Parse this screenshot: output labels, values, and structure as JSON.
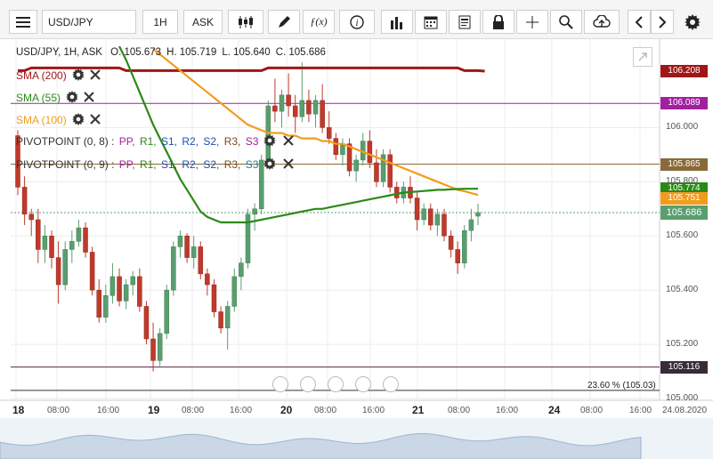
{
  "toolbar": {
    "symbol": "USD/JPY",
    "timeframe": "1H",
    "price_type": "ASK",
    "icons": [
      "menu-icon",
      "candles-icon",
      "pen-icon",
      "function-icon",
      "info-icon",
      "bars-icon",
      "calendar-icon",
      "document-icon",
      "lock-icon",
      "crosshair-icon",
      "zoom-icon",
      "upload-icon",
      "chevron-left-icon",
      "chevron-right-icon",
      "gear-icon"
    ]
  },
  "header": {
    "instrument": "USD/JPY, 1H, ASK",
    "open": "O. 105.673",
    "high": "H. 105.719",
    "low": "L. 105.640",
    "close": "C. 105.686"
  },
  "indicators": [
    {
      "label": "SMA (200)",
      "color": "#a01616"
    },
    {
      "label": "SMA (55)",
      "color": "#2a8a17"
    },
    {
      "label": "SMA (100)",
      "color": "#f29c1c"
    }
  ],
  "pivots": [
    {
      "label": "PIVOTPOINT (0, 8)",
      "sep": ":",
      "items": [
        {
          "t": "PP",
          "c": "#a020a0"
        },
        {
          "t": "R1",
          "c": "#2a8a17"
        },
        {
          "t": "S1",
          "c": "#1f4fb0"
        },
        {
          "t": "R2",
          "c": "#1f4fb0"
        },
        {
          "t": "S2",
          "c": "#1f4fb0"
        },
        {
          "t": "R3",
          "c": "#7a4a1a"
        },
        {
          "t": "S3",
          "c": "#a020a0"
        }
      ]
    },
    {
      "label": "PIVOTPOINT (0, 9)",
      "sep": ":",
      "items": [
        {
          "t": "PP",
          "c": "#a020a0"
        },
        {
          "t": "R1",
          "c": "#2a8a17"
        },
        {
          "t": "S1",
          "c": "#1f4fb0"
        },
        {
          "t": "R2",
          "c": "#1f4fb0"
        },
        {
          "t": "S2",
          "c": "#1f4fb0"
        },
        {
          "t": "R3",
          "c": "#7a4a1a"
        },
        {
          "t": "S3",
          "c": "#1a7fa0"
        }
      ]
    }
  ],
  "colors": {
    "bull": "#5a9e6f",
    "bear": "#c0392b",
    "sma200": "#a01616",
    "sma55": "#2a8a17",
    "sma100": "#f29c1c",
    "pp": "#a020a0",
    "r3": "#8a6a3a",
    "support": "#5a2a4a"
  },
  "price_tags": [
    {
      "value": "106.208",
      "color": "#a01616"
    },
    {
      "value": "106.089",
      "color": "#a020a0"
    },
    {
      "value": "105.865",
      "color": "#8a6a3a"
    },
    {
      "value": "105.774",
      "color": "#2a8a17"
    },
    {
      "value": "105.751",
      "color": "#f29c1c"
    },
    {
      "value": "105.686",
      "color": "#5a9e6f"
    },
    {
      "value": "105.116",
      "color": "#3a2a3a"
    }
  ],
  "fib_label": "23.60 % (105.03)",
  "chart_data": {
    "type": "candlestick",
    "ylim": [
      105.0,
      106.3
    ],
    "y_ticks": [
      "106.000",
      "105.800",
      "105.600",
      "105.400",
      "105.200",
      "105.000"
    ],
    "x_ticks": [
      {
        "t": "18",
        "day": true
      },
      {
        "t": "08:00"
      },
      {
        "t": "16:00"
      },
      {
        "t": "19",
        "day": true
      },
      {
        "t": "08:00"
      },
      {
        "t": "16:00"
      },
      {
        "t": "20",
        "day": true
      },
      {
        "t": "08:00"
      },
      {
        "t": "16:00"
      },
      {
        "t": "21",
        "day": true
      },
      {
        "t": "08:00"
      },
      {
        "t": "16:00"
      },
      {
        "t": "24",
        "day": true
      },
      {
        "t": "08:00"
      },
      {
        "t": "16:00"
      },
      {
        "t": "24.08.2020"
      }
    ],
    "levels": {
      "sma200_last": 106.208,
      "pp": 106.089,
      "r3": 105.865,
      "sma55_last": 105.774,
      "sma100_last": 105.751,
      "close": 105.686,
      "support": 105.116,
      "fib": 105.03
    },
    "candles": [
      [
        105.97,
        105.99,
        105.75,
        105.78
      ],
      [
        105.78,
        105.82,
        105.64,
        105.68
      ],
      [
        105.68,
        105.7,
        105.6,
        105.66
      ],
      [
        105.66,
        105.7,
        105.5,
        105.55
      ],
      [
        105.55,
        105.64,
        105.5,
        105.6
      ],
      [
        105.6,
        105.62,
        105.48,
        105.52
      ],
      [
        105.52,
        105.58,
        105.35,
        105.42
      ],
      [
        105.42,
        105.58,
        105.4,
        105.55
      ],
      [
        105.55,
        105.62,
        105.5,
        105.58
      ],
      [
        105.58,
        105.66,
        105.56,
        105.63
      ],
      [
        105.63,
        105.65,
        105.52,
        105.54
      ],
      [
        105.54,
        105.56,
        105.38,
        105.4
      ],
      [
        105.4,
        105.44,
        105.28,
        105.3
      ],
      [
        105.3,
        105.42,
        105.28,
        105.38
      ],
      [
        105.38,
        105.5,
        105.35,
        105.45
      ],
      [
        105.45,
        105.48,
        105.34,
        105.36
      ],
      [
        105.36,
        105.44,
        105.33,
        105.42
      ],
      [
        105.42,
        105.47,
        105.38,
        105.45
      ],
      [
        105.45,
        105.48,
        105.32,
        105.34
      ],
      [
        105.34,
        105.36,
        105.2,
        105.22
      ],
      [
        105.22,
        105.28,
        105.1,
        105.14
      ],
      [
        105.14,
        105.26,
        105.12,
        105.24
      ],
      [
        105.24,
        105.42,
        105.22,
        105.4
      ],
      [
        105.4,
        105.58,
        105.38,
        105.56
      ],
      [
        105.56,
        105.62,
        105.52,
        105.6
      ],
      [
        105.6,
        105.61,
        105.5,
        105.52
      ],
      [
        105.52,
        105.6,
        105.48,
        105.56
      ],
      [
        105.56,
        105.58,
        105.44,
        105.46
      ],
      [
        105.46,
        105.48,
        105.38,
        105.42
      ],
      [
        105.42,
        105.44,
        105.3,
        105.32
      ],
      [
        105.32,
        105.34,
        105.24,
        105.26
      ],
      [
        105.26,
        105.36,
        105.18,
        105.34
      ],
      [
        105.34,
        105.48,
        105.32,
        105.45
      ],
      [
        105.45,
        105.52,
        105.4,
        105.5
      ],
      [
        105.5,
        105.7,
        105.48,
        105.68
      ],
      [
        105.68,
        105.72,
        105.62,
        105.7
      ],
      [
        105.7,
        105.9,
        105.68,
        105.88
      ],
      [
        105.88,
        106.1,
        105.85,
        106.08
      ],
      [
        106.08,
        106.18,
        106.02,
        106.06
      ],
      [
        106.06,
        106.14,
        106.0,
        106.12
      ],
      [
        106.12,
        106.2,
        106.04,
        106.08
      ],
      [
        106.08,
        106.12,
        105.98,
        106.04
      ],
      [
        106.04,
        106.24,
        106.02,
        106.1
      ],
      [
        106.1,
        106.14,
        106.02,
        106.05
      ],
      [
        106.05,
        106.12,
        106.0,
        106.1
      ],
      [
        106.1,
        106.16,
        105.98,
        106.0
      ],
      [
        106.0,
        106.06,
        105.94,
        105.96
      ],
      [
        105.96,
        105.98,
        105.88,
        105.9
      ],
      [
        105.9,
        105.96,
        105.86,
        105.94
      ],
      [
        105.94,
        105.96,
        105.82,
        105.84
      ],
      [
        105.84,
        105.9,
        105.8,
        105.88
      ],
      [
        105.88,
        105.98,
        105.86,
        105.95
      ],
      [
        105.95,
        105.99,
        105.85,
        105.87
      ],
      [
        105.87,
        105.92,
        105.78,
        105.8
      ],
      [
        105.8,
        105.92,
        105.78,
        105.9
      ],
      [
        105.9,
        105.92,
        105.76,
        105.78
      ],
      [
        105.78,
        105.8,
        105.72,
        105.74
      ],
      [
        105.74,
        105.8,
        105.72,
        105.78
      ],
      [
        105.78,
        105.82,
        105.72,
        105.74
      ],
      [
        105.74,
        105.76,
        105.62,
        105.66
      ],
      [
        105.66,
        105.72,
        105.64,
        105.7
      ],
      [
        105.7,
        105.72,
        105.62,
        105.64
      ],
      [
        105.64,
        105.7,
        105.6,
        105.68
      ],
      [
        105.68,
        105.7,
        105.58,
        105.6
      ],
      [
        105.6,
        105.62,
        105.52,
        105.55
      ],
      [
        105.55,
        105.58,
        105.46,
        105.5
      ],
      [
        105.5,
        105.64,
        105.48,
        105.62
      ],
      [
        105.62,
        105.7,
        105.58,
        105.66
      ],
      [
        105.673,
        105.719,
        105.64,
        105.686
      ]
    ],
    "sma200": [
      106.21,
      106.21,
      106.22,
      106.22,
      106.22,
      106.22,
      106.22,
      106.22,
      106.22,
      106.22,
      106.22,
      106.22,
      106.22,
      106.22,
      106.22,
      106.22,
      106.21,
      106.21,
      106.21,
      106.21,
      106.21,
      106.21,
      106.21,
      106.21,
      106.21,
      106.21,
      106.21,
      106.21,
      106.21,
      106.21,
      106.21,
      106.21,
      106.21,
      106.21,
      106.21,
      106.21,
      106.21,
      106.22,
      106.22,
      106.22,
      106.22,
      106.22,
      106.22,
      106.22,
      106.22,
      106.22,
      106.22,
      106.22,
      106.22,
      106.22,
      106.22,
      106.22,
      106.22,
      106.22,
      106.22,
      106.22,
      106.22,
      106.22,
      106.22,
      106.22,
      106.22,
      106.22,
      106.22,
      106.22,
      106.22,
      106.22,
      106.21,
      106.21,
      106.21,
      106.208
    ],
    "sma100": [
      null,
      null,
      null,
      null,
      null,
      null,
      null,
      null,
      null,
      null,
      null,
      null,
      null,
      null,
      null,
      null,
      null,
      null,
      null,
      null,
      106.29,
      106.27,
      106.25,
      106.23,
      106.21,
      106.19,
      106.17,
      106.15,
      106.13,
      106.11,
      106.09,
      106.07,
      106.05,
      106.03,
      106.01,
      106.0,
      105.99,
      105.98,
      105.98,
      105.98,
      105.97,
      105.97,
      105.96,
      105.96,
      105.96,
      105.95,
      105.95,
      105.94,
      105.94,
      105.93,
      105.92,
      105.91,
      105.9,
      105.89,
      105.88,
      105.87,
      105.86,
      105.85,
      105.84,
      105.83,
      105.82,
      105.81,
      105.8,
      105.79,
      105.78,
      105.77,
      105.765,
      105.758,
      105.751
    ],
    "sma55": [
      null,
      null,
      null,
      null,
      null,
      null,
      null,
      null,
      null,
      null,
      null,
      null,
      null,
      null,
      null,
      106.3,
      106.25,
      106.19,
      106.13,
      106.07,
      106.01,
      105.96,
      105.91,
      105.86,
      105.81,
      105.77,
      105.73,
      105.69,
      105.67,
      105.66,
      105.65,
      105.65,
      105.65,
      105.65,
      105.65,
      105.655,
      105.66,
      105.665,
      105.67,
      105.675,
      105.68,
      105.685,
      105.69,
      105.695,
      105.7,
      105.7,
      105.705,
      105.71,
      105.715,
      105.72,
      105.725,
      105.73,
      105.735,
      105.74,
      105.745,
      105.75,
      105.755,
      105.76,
      105.762,
      105.764,
      105.766,
      105.768,
      105.77,
      105.77,
      105.772,
      105.773,
      105.774,
      105.774,
      105.774
    ]
  }
}
